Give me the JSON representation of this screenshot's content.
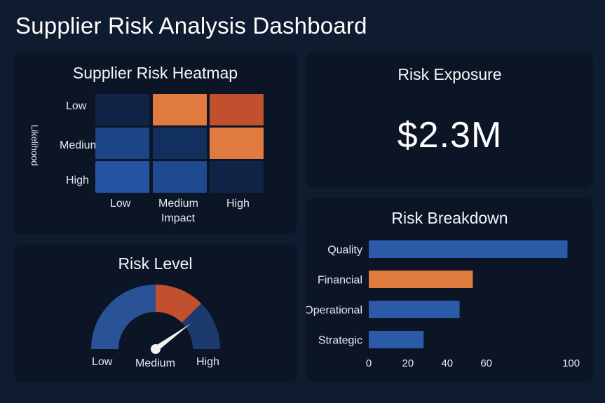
{
  "dashboard": {
    "title": "Supplier Risk Analysis Dashboard"
  },
  "heatmap": {
    "title": "Supplier Risk Heatmap",
    "y_axis_label": "Likelihood",
    "x_axis_label": "Impact",
    "rows": [
      "Low",
      "Medium",
      "High"
    ],
    "cols": [
      "Low",
      "Medium",
      "High"
    ],
    "cells": [
      [
        "#0f2446",
        "#e07a3e",
        "#c24f2e"
      ],
      [
        "#1c4487",
        "#12305e",
        "#e07a3e"
      ],
      [
        "#2654a2",
        "#1f4a90",
        "#0f2446"
      ]
    ]
  },
  "exposure": {
    "title": "Risk Exposure",
    "value": "$2.3M"
  },
  "gauge": {
    "title": "Risk Level",
    "labels": [
      "Low",
      "Medium",
      "High"
    ],
    "level": "Medium",
    "needle_fraction": 0.8,
    "colors": {
      "low": "#2a5296",
      "medium": "#c24f2e",
      "high": "#1d3a6e",
      "needle": "#f2f2f2"
    }
  },
  "chart_data": {
    "type": "bar",
    "orientation": "horizontal",
    "title": "Risk Breakdown",
    "categories": [
      "Quality",
      "Financial",
      "Operational",
      "Strategic"
    ],
    "values": [
      105,
      55,
      48,
      29
    ],
    "colors": [
      "#2a5aa8",
      "#e07a3e",
      "#2a5aa8",
      "#2a5aa8"
    ],
    "xlim": [
      0,
      110
    ],
    "xticks": [
      0,
      20,
      40,
      60,
      100
    ],
    "xlabel": "",
    "ylabel": ""
  }
}
